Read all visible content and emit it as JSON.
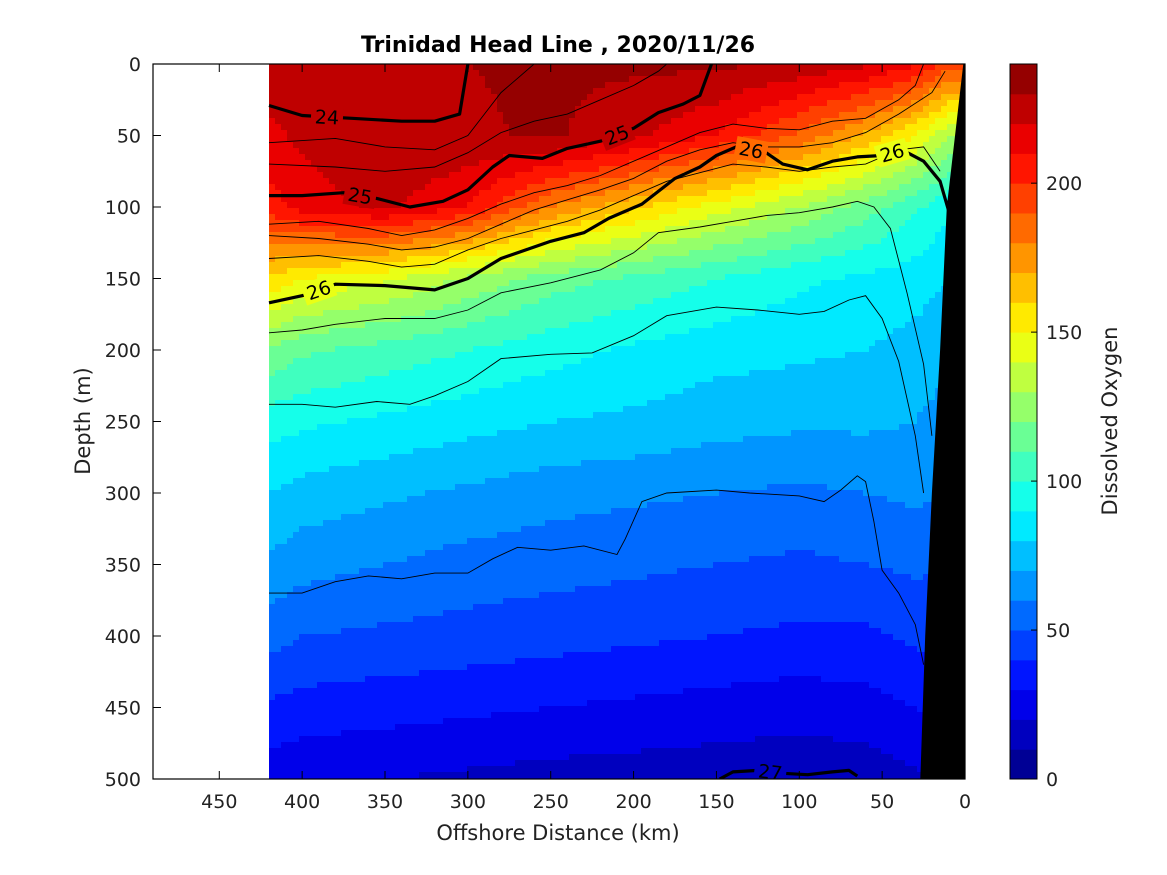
{
  "chart_data": {
    "type": "heatmap",
    "title": "Trinidad Head Line , 2020/11/26",
    "xlabel": "Offshore Distance (km)",
    "ylabel": "Depth (m)",
    "colorbar_label": "Dissolved Oxygen",
    "xlim": [
      490,
      0
    ],
    "ylim": [
      0,
      500
    ],
    "x_reversed": true,
    "y_reversed": true,
    "x_ticks": [
      450,
      400,
      350,
      300,
      250,
      200,
      150,
      100,
      50,
      0
    ],
    "y_ticks": [
      0,
      50,
      100,
      150,
      200,
      250,
      300,
      350,
      400,
      450,
      500
    ],
    "colorbar_ticks": [
      0,
      50,
      100,
      150,
      200
    ],
    "colorbar_range": [
      0,
      240
    ],
    "colorbar_levels": 24,
    "colormap": "jet",
    "data_x_extent": [
      420,
      0
    ],
    "oxygen_field": {
      "x": [
        420,
        400,
        350,
        300,
        250,
        200,
        150,
        100,
        60,
        30,
        10
      ],
      "depth": [
        0,
        50,
        100,
        150,
        200,
        250,
        300,
        350,
        400,
        450,
        500
      ],
      "values": [
        [
          225,
          225,
          230,
          230,
          232,
          232,
          232,
          228,
          222,
          212,
          195
        ],
        [
          218,
          222,
          230,
          228,
          232,
          222,
          210,
          188,
          168,
          150,
          130
        ],
        [
          205,
          215,
          222,
          210,
          180,
          162,
          145,
          130,
          115,
          102,
          92
        ],
        [
          158,
          150,
          142,
          128,
          115,
          108,
          100,
          92,
          88,
          85,
          80
        ],
        [
          118,
          112,
          106,
          100,
          94,
          88,
          84,
          82,
          80,
          76,
          72
        ],
        [
          95,
          92,
          88,
          84,
          80,
          78,
          74,
          72,
          72,
          70,
          66
        ],
        [
          80,
          76,
          72,
          68,
          64,
          62,
          60,
          58,
          60,
          62,
          60
        ],
        [
          68,
          64,
          60,
          56,
          54,
          52,
          50,
          48,
          50,
          52,
          50
        ],
        [
          54,
          50,
          48,
          46,
          44,
          42,
          40,
          38,
          38,
          42,
          44
        ],
        [
          38,
          36,
          34,
          32,
          30,
          28,
          26,
          24,
          26,
          30,
          36
        ],
        [
          24,
          22,
          20,
          18,
          16,
          15,
          14,
          13,
          14,
          18,
          24
        ]
      ]
    },
    "density_contours": [
      {
        "label": "24",
        "bold": true,
        "points": [
          [
            420,
            29
          ],
          [
            400,
            36
          ],
          [
            370,
            38
          ],
          [
            340,
            40
          ],
          [
            320,
            40
          ],
          [
            305,
            35
          ],
          [
            300,
            0
          ]
        ]
      },
      {
        "label": "25",
        "bold": true,
        "points": [
          [
            420,
            92
          ],
          [
            400,
            92
          ],
          [
            375,
            90
          ],
          [
            355,
            94
          ],
          [
            335,
            100
          ],
          [
            315,
            96
          ],
          [
            300,
            88
          ],
          [
            285,
            72
          ],
          [
            275,
            64
          ],
          [
            255,
            66
          ],
          [
            240,
            59
          ],
          [
            220,
            54
          ],
          [
            200,
            45
          ],
          [
            185,
            34
          ],
          [
            170,
            28
          ],
          [
            160,
            22
          ],
          [
            153,
            0
          ]
        ]
      },
      {
        "label": "26",
        "bold": true,
        "points": [
          [
            420,
            167
          ],
          [
            400,
            162
          ],
          [
            380,
            154
          ],
          [
            350,
            155
          ],
          [
            320,
            158
          ],
          [
            300,
            150
          ],
          [
            280,
            136
          ],
          [
            250,
            124
          ],
          [
            230,
            118
          ],
          [
            215,
            108
          ],
          [
            195,
            98
          ],
          [
            175,
            80
          ],
          [
            160,
            72
          ],
          [
            150,
            64
          ],
          [
            138,
            58
          ],
          [
            120,
            62
          ],
          [
            110,
            70
          ],
          [
            95,
            74
          ],
          [
            80,
            68
          ],
          [
            65,
            65
          ],
          [
            50,
            64
          ],
          [
            38,
            60
          ],
          [
            25,
            68
          ],
          [
            15,
            82
          ],
          [
            10,
            102
          ]
        ]
      },
      {
        "label": "27",
        "bold": true,
        "points": [
          [
            148,
            500
          ],
          [
            140,
            495
          ],
          [
            125,
            494
          ],
          [
            110,
            496
          ],
          [
            95,
            497
          ],
          [
            80,
            495
          ],
          [
            70,
            494
          ],
          [
            65,
            498
          ]
        ]
      }
    ],
    "thin_contours": [
      [
        [
          420,
          55
        ],
        [
          380,
          52
        ],
        [
          350,
          58
        ],
        [
          320,
          60
        ],
        [
          300,
          50
        ],
        [
          290,
          35
        ],
        [
          280,
          20
        ],
        [
          270,
          10
        ],
        [
          260,
          0
        ]
      ],
      [
        [
          420,
          70
        ],
        [
          380,
          72
        ],
        [
          350,
          75
        ],
        [
          320,
          72
        ],
        [
          300,
          62
        ],
        [
          280,
          48
        ],
        [
          260,
          40
        ],
        [
          240,
          35
        ],
        [
          220,
          25
        ],
        [
          200,
          15
        ],
        [
          185,
          5
        ],
        [
          180,
          0
        ]
      ],
      [
        [
          420,
          112
        ],
        [
          390,
          110
        ],
        [
          360,
          115
        ],
        [
          340,
          120
        ],
        [
          320,
          116
        ],
        [
          300,
          108
        ],
        [
          280,
          98
        ],
        [
          260,
          90
        ],
        [
          240,
          85
        ],
        [
          220,
          78
        ],
        [
          200,
          68
        ],
        [
          180,
          58
        ],
        [
          160,
          48
        ],
        [
          140,
          42
        ],
        [
          120,
          45
        ],
        [
          100,
          46
        ],
        [
          80,
          40
        ],
        [
          60,
          38
        ],
        [
          40,
          25
        ],
        [
          30,
          15
        ],
        [
          25,
          0
        ]
      ],
      [
        [
          420,
          120
        ],
        [
          390,
          122
        ],
        [
          360,
          126
        ],
        [
          340,
          130
        ],
        [
          320,
          128
        ],
        [
          300,
          122
        ],
        [
          280,
          112
        ],
        [
          260,
          102
        ],
        [
          240,
          95
        ],
        [
          220,
          88
        ],
        [
          200,
          80
        ],
        [
          180,
          68
        ],
        [
          160,
          60
        ],
        [
          140,
          55
        ],
        [
          120,
          58
        ],
        [
          100,
          58
        ],
        [
          80,
          55
        ],
        [
          60,
          48
        ],
        [
          40,
          35
        ],
        [
          20,
          20
        ],
        [
          12,
          5
        ]
      ],
      [
        [
          420,
          136
        ],
        [
          390,
          134
        ],
        [
          360,
          138
        ],
        [
          340,
          142
        ],
        [
          320,
          140
        ],
        [
          300,
          130
        ],
        [
          280,
          122
        ],
        [
          260,
          116
        ],
        [
          240,
          110
        ],
        [
          220,
          102
        ],
        [
          200,
          92
        ],
        [
          180,
          82
        ],
        [
          160,
          76
        ],
        [
          140,
          70
        ],
        [
          120,
          72
        ],
        [
          100,
          75
        ],
        [
          80,
          72
        ],
        [
          60,
          70
        ],
        [
          40,
          60
        ],
        [
          25,
          58
        ],
        [
          15,
          75
        ]
      ],
      [
        [
          420,
          188
        ],
        [
          400,
          186
        ],
        [
          380,
          182
        ],
        [
          350,
          178
        ],
        [
          320,
          178
        ],
        [
          300,
          172
        ],
        [
          280,
          160
        ],
        [
          250,
          153
        ],
        [
          220,
          144
        ],
        [
          200,
          132
        ],
        [
          185,
          118
        ],
        [
          160,
          114
        ],
        [
          140,
          110
        ],
        [
          120,
          106
        ],
        [
          100,
          104
        ],
        [
          80,
          100
        ],
        [
          65,
          96
        ],
        [
          55,
          100
        ],
        [
          45,
          115
        ],
        [
          35,
          160
        ],
        [
          25,
          210
        ],
        [
          20,
          260
        ]
      ],
      [
        [
          420,
          238
        ],
        [
          400,
          238
        ],
        [
          380,
          240
        ],
        [
          355,
          236
        ],
        [
          335,
          238
        ],
        [
          320,
          232
        ],
        [
          300,
          222
        ],
        [
          280,
          206
        ],
        [
          250,
          203
        ],
        [
          225,
          202
        ],
        [
          200,
          190
        ],
        [
          180,
          176
        ],
        [
          150,
          170
        ],
        [
          125,
          172
        ],
        [
          100,
          175
        ],
        [
          85,
          173
        ],
        [
          70,
          165
        ],
        [
          60,
          162
        ],
        [
          50,
          178
        ],
        [
          40,
          208
        ],
        [
          30,
          260
        ],
        [
          25,
          300
        ]
      ],
      [
        [
          420,
          370
        ],
        [
          400,
          370
        ],
        [
          380,
          362
        ],
        [
          360,
          358
        ],
        [
          340,
          360
        ],
        [
          320,
          356
        ],
        [
          300,
          356
        ],
        [
          285,
          346
        ],
        [
          270,
          338
        ],
        [
          250,
          340
        ],
        [
          230,
          337
        ],
        [
          210,
          343
        ],
        [
          205,
          332
        ],
        [
          195,
          306
        ],
        [
          180,
          300
        ],
        [
          150,
          298
        ],
        [
          130,
          300
        ],
        [
          100,
          302
        ],
        [
          85,
          306
        ],
        [
          75,
          298
        ],
        [
          65,
          288
        ],
        [
          60,
          292
        ],
        [
          55,
          320
        ],
        [
          50,
          354
        ],
        [
          40,
          370
        ],
        [
          30,
          392
        ],
        [
          25,
          420
        ]
      ]
    ],
    "bathymetry_x_at_depth": [
      [
        0,
        1
      ],
      [
        100,
        11
      ],
      [
        200,
        15
      ],
      [
        300,
        20
      ],
      [
        400,
        24
      ],
      [
        500,
        27
      ]
    ],
    "annotations": [
      "24",
      "25",
      "25",
      "26",
      "26",
      "26",
      "27"
    ]
  }
}
